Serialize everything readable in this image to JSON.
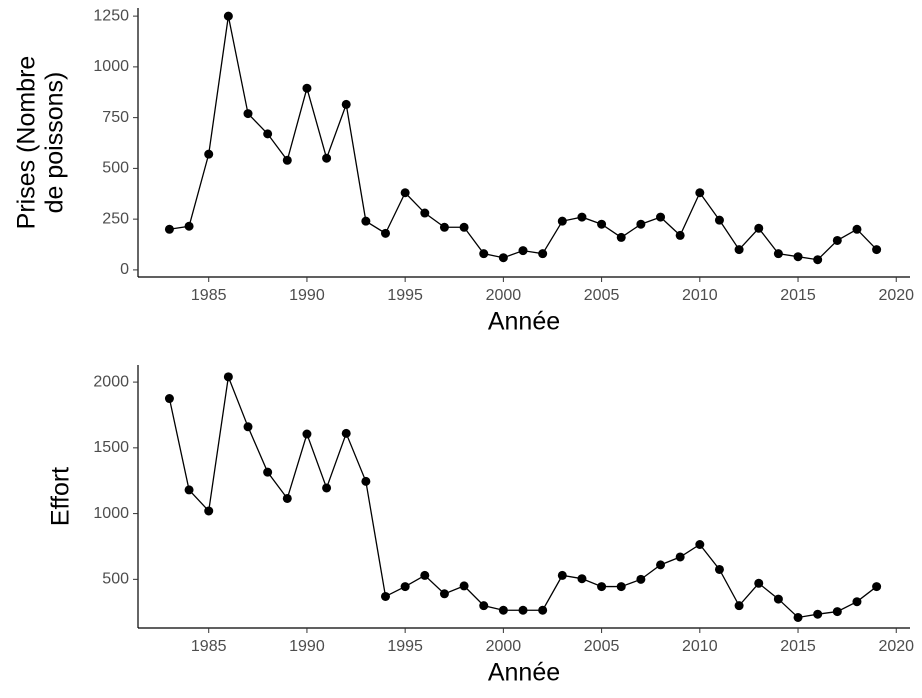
{
  "chart_data": [
    {
      "type": "line",
      "xlabel": "Année",
      "ylabel": [
        "Prises (Nombre",
        "de poissons)"
      ],
      "x": [
        1983,
        1984,
        1985,
        1986,
        1987,
        1988,
        1989,
        1990,
        1991,
        1992,
        1993,
        1994,
        1995,
        1996,
        1997,
        1998,
        1999,
        2000,
        2001,
        2002,
        2003,
        2004,
        2005,
        2006,
        2007,
        2008,
        2009,
        2010,
        2011,
        2012,
        2013,
        2014,
        2015,
        2016,
        2017,
        2018,
        2019
      ],
      "values": [
        200,
        215,
        570,
        1250,
        770,
        670,
        540,
        895,
        550,
        815,
        240,
        180,
        380,
        280,
        210,
        210,
        80,
        60,
        95,
        80,
        240,
        260,
        225,
        160,
        225,
        260,
        170,
        380,
        245,
        100,
        205,
        80,
        65,
        50,
        145,
        200,
        100
      ],
      "color": "#000000",
      "xlim": [
        1981.4,
        2020.7
      ],
      "xticks": [
        1985,
        1990,
        1995,
        2000,
        2005,
        2010,
        2015,
        2020
      ],
      "ylim": [
        -35,
        1290
      ],
      "yticks": [
        0,
        250,
        500,
        750,
        1000,
        1250
      ]
    },
    {
      "type": "line",
      "xlabel": "Année",
      "ylabel": [
        "Effort"
      ],
      "x": [
        1983,
        1984,
        1985,
        1986,
        1987,
        1988,
        1989,
        1990,
        1991,
        1992,
        1993,
        1994,
        1995,
        1996,
        1997,
        1998,
        1999,
        2000,
        2001,
        2002,
        2003,
        2004,
        2005,
        2006,
        2007,
        2008,
        2009,
        2010,
        2011,
        2012,
        2013,
        2014,
        2015,
        2016,
        2017,
        2018,
        2019
      ],
      "values": [
        1875,
        1180,
        1020,
        2040,
        1660,
        1315,
        1115,
        1605,
        1195,
        1610,
        1245,
        370,
        445,
        530,
        390,
        450,
        300,
        265,
        265,
        265,
        530,
        505,
        445,
        445,
        500,
        610,
        670,
        765,
        575,
        300,
        470,
        350,
        210,
        235,
        255,
        330,
        445
      ],
      "color": "#000000",
      "xlim": [
        1981.4,
        2020.7
      ],
      "xticks": [
        1985,
        1990,
        1995,
        2000,
        2005,
        2010,
        2015,
        2020
      ],
      "ylim": [
        130,
        2130
      ],
      "yticks": [
        500,
        1000,
        1500,
        2000
      ]
    }
  ]
}
